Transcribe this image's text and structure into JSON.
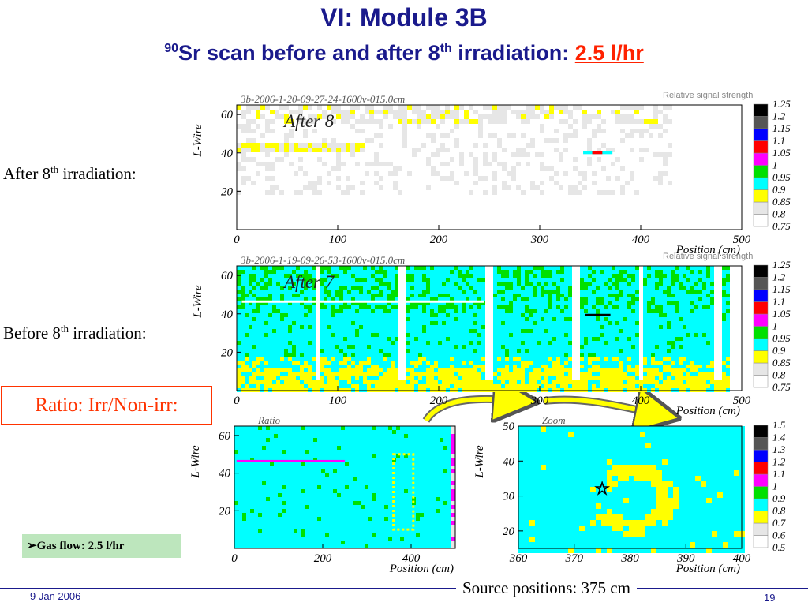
{
  "header": {
    "title": "VI: Module 3B",
    "subtitle_sup": "90",
    "subtitle_main": "Sr scan before and after 8",
    "subtitle_sup2": "th",
    "subtitle_rest": " irradiation: ",
    "subtitle_highlight": "2.5 l/hr"
  },
  "labels": {
    "after_prefix": "After 8",
    "after_sup": "th",
    "after_suffix": " irradiation:",
    "before_prefix": "Before 8",
    "before_sup": "th",
    "before_suffix": " irradiation:",
    "ratio_box": "Ratio: Irr/Non-irr:",
    "gas_flow": "➢Gas flow: 2.5 l/hr",
    "source": "Source positions: 375 cm"
  },
  "footer": {
    "date": "9 Jan 2006",
    "page": "19"
  },
  "colors": {
    "title": "#1a1a8c",
    "highlight": "#ff2200",
    "scale": [
      "#ffffff",
      "#e6e6e6",
      "#ffff00",
      "#00ffff",
      "#00e000",
      "#ff00ff",
      "#ff0000",
      "#0000ff",
      "#555555",
      "#000000"
    ]
  },
  "chart_data": [
    {
      "type": "heatmap",
      "id": "after",
      "title": "3b-2006-1-20-09-27-24-1600v-015.0cm",
      "annotation": "After 8",
      "xlabel": "Position (cm)",
      "ylabel": "L-Wire",
      "xlim": [
        0,
        500
      ],
      "ylim": [
        0,
        65
      ],
      "x_ticks": [
        "0",
        "100",
        "200",
        "300",
        "400",
        "500"
      ],
      "y_ticks": [
        "20",
        "40",
        "60"
      ],
      "scale_title": "Relative signal strength",
      "scale": [
        "0.75",
        "0.8",
        "0.85",
        "0.9",
        "0.95",
        "1",
        "1.05",
        "1.1",
        "1.15",
        "1.2",
        "1.25"
      ]
    },
    {
      "type": "heatmap",
      "id": "before",
      "title": "3b-2006-1-19-09-26-53-1600v-015.0cm",
      "annotation": "After 7",
      "xlabel": "Position (cm)",
      "ylabel": "L-Wire",
      "xlim": [
        0,
        500
      ],
      "ylim": [
        0,
        65
      ],
      "x_ticks": [
        "0",
        "100",
        "200",
        "300",
        "400",
        "500"
      ],
      "y_ticks": [
        "20",
        "40",
        "60"
      ],
      "scale_title": "Relative signal strength",
      "scale": [
        "0.75",
        "0.8",
        "0.85",
        "0.9",
        "0.95",
        "1",
        "1.05",
        "1.1",
        "1.15",
        "1.2",
        "1.25"
      ]
    },
    {
      "type": "heatmap",
      "id": "ratio",
      "title": "Ratio",
      "xlabel": "Position (cm)",
      "ylabel": "L-Wire",
      "xlim": [
        0,
        500
      ],
      "ylim": [
        0,
        65
      ],
      "x_ticks": [
        "0",
        "200",
        "400"
      ],
      "y_ticks": [
        "20",
        "40",
        "60"
      ]
    },
    {
      "type": "heatmap",
      "id": "zoom",
      "title": "Zoom",
      "xlabel": "Position (cm)",
      "ylabel": "L-Wire",
      "xlim": [
        360,
        400
      ],
      "ylim": [
        15,
        50
      ],
      "x_ticks": [
        "360",
        "370",
        "380",
        "390",
        "400"
      ],
      "y_ticks": [
        "20",
        "30",
        "40",
        "50"
      ],
      "source_marker": {
        "x": 375,
        "y": 32
      },
      "scale": [
        "0.5",
        "0.6",
        "0.7",
        "0.8",
        "0.9",
        "1",
        "1.1",
        "1.2",
        "1.3",
        "1.4",
        "1.5"
      ]
    }
  ]
}
